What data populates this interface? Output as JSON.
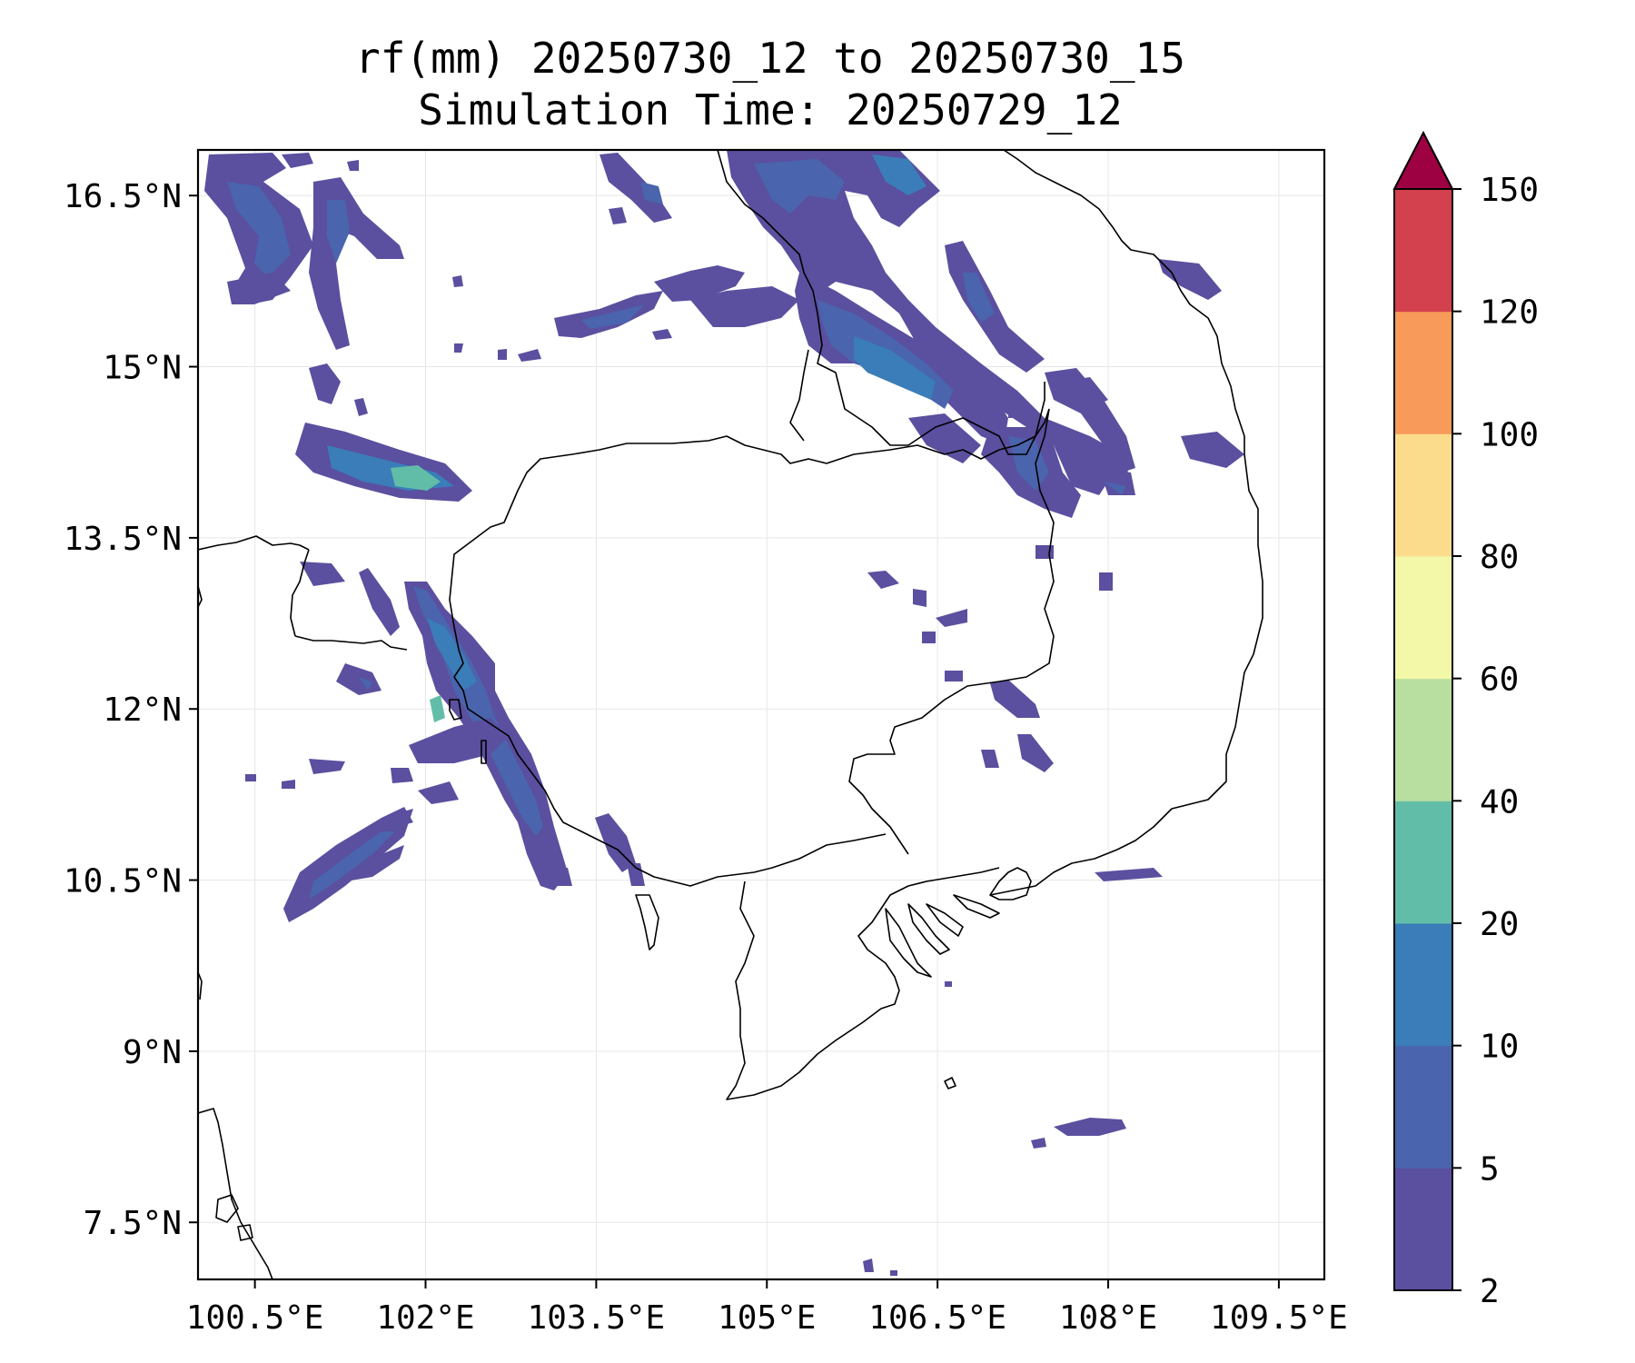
{
  "title": {
    "line1": "rf(mm) 20250730_12 to 20250730_15",
    "line2": "Simulation Time: 20250729_12"
  },
  "map": {
    "lon_range": [
      100.0,
      109.9
    ],
    "lat_range": [
      7.0,
      16.9
    ],
    "lon_ticks": [
      "100.5°E",
      "102°E",
      "103.5°E",
      "105°E",
      "106.5°E",
      "108°E",
      "109.5°E"
    ],
    "lat_ticks": [
      "16.5°N",
      "15°N",
      "13.5°N",
      "12°N",
      "10.5°N",
      "9°N",
      "7.5°N"
    ],
    "lon_tick_values": [
      100.5,
      102.0,
      103.5,
      105.0,
      106.5,
      108.0,
      109.5
    ],
    "lat_tick_values": [
      16.5,
      15.0,
      13.5,
      12.0,
      10.5,
      9.0,
      7.5
    ],
    "gridlines": true
  },
  "colorbar": {
    "levels": [
      "2",
      "5",
      "10",
      "20",
      "40",
      "60",
      "80",
      "100",
      "120",
      "150"
    ],
    "colors": [
      "#5b4f9f",
      "#4a64ad",
      "#3a7db8",
      "#62bda8",
      "#b9dfa0",
      "#f2f8a8",
      "#fbdc8c",
      "#f89b5a",
      "#d4414e"
    ],
    "extend_color": "#9e0142",
    "extend": "max"
  },
  "rain_colors": {
    "light": "#5b4f9f",
    "moderate": "#4a64ad",
    "heavy": "#3a7db8",
    "very_heavy": "#62bda8"
  }
}
